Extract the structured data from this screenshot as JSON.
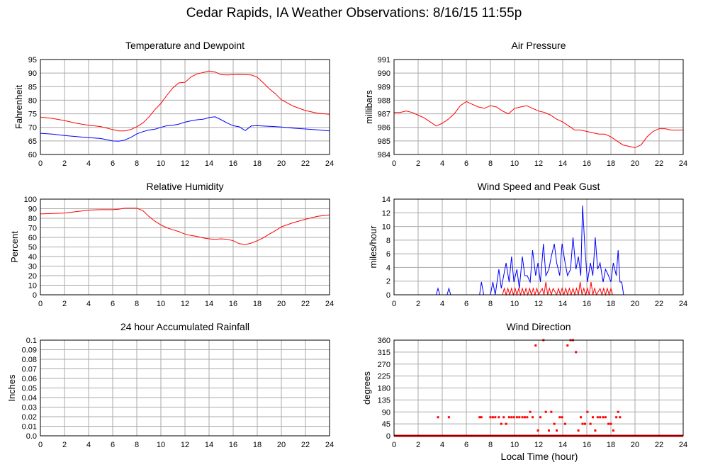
{
  "page": {
    "title": "Cedar Rapids, IA Weather Observations: 8/16/15 11:55p",
    "xlabel_common": "Local Time (hour)"
  },
  "colors": {
    "red": "#ff0000",
    "blue": "#0000ff",
    "grid": "#aaaaaa",
    "frame": "#000000"
  },
  "chart_data": [
    {
      "id": "temp",
      "type": "line",
      "title": "Temperature and Dewpoint",
      "ylabel": "Fahrenheit",
      "xlim": [
        0,
        24
      ],
      "ylim": [
        60,
        95
      ],
      "xticks": [
        "0",
        "2",
        "4",
        "6",
        "8",
        "10",
        "12",
        "14",
        "16",
        "18",
        "20",
        "22",
        "24"
      ],
      "yticks": [
        "60",
        "65",
        "70",
        "75",
        "80",
        "85",
        "90",
        "95"
      ],
      "series": [
        {
          "color": "#ff0000",
          "x": [
            0,
            1,
            2,
            3,
            4,
            5,
            6,
            6.5,
            7,
            7.5,
            8,
            8.5,
            9,
            9.5,
            10,
            10.5,
            11,
            11.5,
            12,
            12.5,
            13,
            13.5,
            14,
            14.5,
            15,
            15.5,
            16,
            16.5,
            17,
            17.5,
            18,
            18.5,
            19,
            19.5,
            20,
            21,
            22,
            23,
            24
          ],
          "y": [
            73.8,
            73.3,
            72.5,
            71.5,
            70.8,
            70.3,
            69.2,
            68.7,
            68.7,
            69.2,
            70.2,
            71.6,
            73.8,
            76.5,
            78.8,
            81.8,
            84.6,
            86.4,
            86.6,
            88.6,
            89.7,
            90.2,
            90.8,
            90.4,
            89.4,
            89.3,
            89.4,
            89.5,
            89.4,
            89.3,
            88.5,
            86.4,
            84.2,
            82.4,
            80.2,
            77.8,
            76.2,
            75.2,
            74.8
          ]
        },
        {
          "color": "#0000ff",
          "x": [
            0,
            1,
            2,
            3,
            4,
            5,
            6,
            6.5,
            7,
            7.5,
            8,
            8.5,
            9,
            9.5,
            10,
            10.5,
            11,
            11.5,
            12,
            12.5,
            13,
            13.5,
            14,
            14.5,
            15,
            15.5,
            16,
            16.5,
            17,
            17.5,
            18,
            19,
            20,
            21,
            22,
            23,
            24
          ],
          "y": [
            67.8,
            67.5,
            67.0,
            66.6,
            66.2,
            65.9,
            65.0,
            64.9,
            65.3,
            66.3,
            67.6,
            68.4,
            69.0,
            69.3,
            70.0,
            70.6,
            70.8,
            71.2,
            71.9,
            72.4,
            72.8,
            73.0,
            73.6,
            73.9,
            72.8,
            71.6,
            70.6,
            70.2,
            68.8,
            70.5,
            70.6,
            70.4,
            70.1,
            69.7,
            69.4,
            69.1,
            68.7
          ]
        }
      ]
    },
    {
      "id": "pres",
      "type": "line",
      "title": "Air Pressure",
      "ylabel": "millibars",
      "xlim": [
        0,
        24
      ],
      "ylim": [
        984,
        991
      ],
      "xticks": [
        "0",
        "2",
        "4",
        "6",
        "8",
        "10",
        "12",
        "14",
        "16",
        "18",
        "20",
        "22",
        "24"
      ],
      "yticks": [
        "984",
        "985",
        "986",
        "987",
        "988",
        "989",
        "990",
        "991"
      ],
      "series": [
        {
          "color": "#ff0000",
          "x": [
            0,
            0.5,
            1,
            1.5,
            2,
            2.5,
            3,
            3.5,
            4,
            4.5,
            5,
            5.5,
            6,
            6.5,
            7,
            7.5,
            8,
            8.5,
            9,
            9.5,
            10,
            10.5,
            11,
            11.5,
            12,
            12.5,
            13,
            13.5,
            14,
            14.5,
            15,
            15.5,
            16,
            16.5,
            17,
            17.5,
            18,
            18.5,
            19,
            19.5,
            20,
            20.5,
            21,
            21.5,
            22,
            22.5,
            23,
            23.5,
            24
          ],
          "y": [
            987.1,
            987.1,
            987.2,
            987.1,
            986.9,
            986.7,
            986.4,
            986.1,
            986.3,
            986.6,
            987.0,
            987.6,
            987.9,
            987.7,
            987.5,
            987.4,
            987.6,
            987.5,
            987.2,
            987.0,
            987.4,
            987.5,
            987.6,
            987.4,
            987.2,
            987.1,
            986.9,
            986.6,
            986.4,
            986.1,
            985.8,
            985.8,
            985.7,
            985.6,
            985.5,
            985.5,
            985.3,
            985.0,
            984.7,
            984.6,
            984.5,
            984.7,
            985.3,
            985.7,
            985.9,
            985.9,
            985.8,
            985.8,
            985.8
          ]
        }
      ]
    },
    {
      "id": "rh",
      "type": "line",
      "title": "Relative Humidity",
      "ylabel": "Percent",
      "xlim": [
        0,
        24
      ],
      "ylim": [
        0,
        100
      ],
      "xticks": [
        "0",
        "2",
        "4",
        "6",
        "8",
        "10",
        "12",
        "14",
        "16",
        "18",
        "20",
        "22",
        "24"
      ],
      "yticks": [
        "0",
        "10",
        "20",
        "30",
        "40",
        "50",
        "60",
        "70",
        "80",
        "90",
        "100"
      ],
      "series": [
        {
          "color": "#ff0000",
          "x": [
            0,
            1,
            2,
            3,
            4,
            5,
            6,
            6.5,
            7,
            7.5,
            8,
            8.5,
            9,
            9.5,
            10,
            10.5,
            11,
            11.5,
            12,
            12.5,
            13,
            13.5,
            14,
            14.5,
            15,
            15.5,
            16,
            16.5,
            17,
            17.5,
            18,
            18.5,
            19,
            19.5,
            20,
            21,
            22,
            23,
            24
          ],
          "y": [
            84.5,
            85,
            85.5,
            87,
            88.5,
            89,
            89,
            89.5,
            90.5,
            90.5,
            90.5,
            88,
            82,
            77,
            73,
            70,
            68,
            66,
            63.5,
            62,
            61,
            59.5,
            58.5,
            58,
            58.5,
            58,
            56.5,
            53.5,
            52.5,
            54,
            56.5,
            59.5,
            63.5,
            67,
            71,
            75.5,
            79,
            82,
            83.5
          ]
        }
      ]
    },
    {
      "id": "wind",
      "type": "line",
      "title": "Wind Speed and Peak Gust",
      "ylabel": "miles/hour",
      "xlim": [
        0,
        24
      ],
      "ylim": [
        0,
        15
      ],
      "xticks": [
        "0",
        "2",
        "4",
        "6",
        "8",
        "10",
        "12",
        "14",
        "16",
        "18",
        "20",
        "22",
        "24"
      ],
      "yticks": [
        "0",
        "2",
        "4",
        "6",
        "8",
        "10",
        "12",
        "14"
      ],
      "series": [
        {
          "color": "#0000ff",
          "x": [
            0,
            3.5,
            3.65,
            3.8,
            4.4,
            4.55,
            4.7,
            7.1,
            7.25,
            7.45,
            8.0,
            8.2,
            8.4,
            8.7,
            8.9,
            9.1,
            9.3,
            9.55,
            9.75,
            9.95,
            10.2,
            10.4,
            10.65,
            10.85,
            11.05,
            11.3,
            11.5,
            11.75,
            11.95,
            12.15,
            12.4,
            12.6,
            12.85,
            13.05,
            13.3,
            13.5,
            13.75,
            13.95,
            14.2,
            14.4,
            14.65,
            14.85,
            15.1,
            15.3,
            15.5,
            15.65,
            15.85,
            16.05,
            16.3,
            16.5,
            16.7,
            16.9,
            17.1,
            17.35,
            17.55,
            17.8,
            18.0,
            18.2,
            18.45,
            18.6,
            18.75,
            18.9,
            19.05,
            24
          ],
          "y": [
            0,
            0,
            1,
            0,
            0,
            1,
            0,
            0,
            2,
            0,
            0,
            2,
            0,
            4,
            1,
            3,
            5,
            2,
            6,
            2,
            4,
            1,
            6,
            3,
            3,
            2,
            7,
            3,
            5,
            2,
            8,
            3,
            4,
            6,
            8,
            5,
            3,
            8,
            5,
            3,
            4,
            9,
            4,
            6,
            3,
            14,
            7,
            2,
            5,
            3,
            9,
            4,
            5,
            2,
            4,
            3,
            2,
            5,
            3,
            7,
            2,
            2,
            0,
            0
          ]
        },
        {
          "color": "#ff0000",
          "x": [
            0,
            9.0,
            9.15,
            9.3,
            9.45,
            9.6,
            9.75,
            9.9,
            10.05,
            10.2,
            10.35,
            10.5,
            10.65,
            10.8,
            10.95,
            11.1,
            11.25,
            11.4,
            11.55,
            11.7,
            11.85,
            12.0,
            12.3,
            12.45,
            12.6,
            12.75,
            12.9,
            13.05,
            13.2,
            13.5,
            13.65,
            13.8,
            13.95,
            14.1,
            14.25,
            14.4,
            14.55,
            14.7,
            14.85,
            15.0,
            15.15,
            15.3,
            15.45,
            15.6,
            15.75,
            15.9,
            16.05,
            16.2,
            16.35,
            16.5,
            16.65,
            16.8,
            17.1,
            17.25,
            17.4,
            17.55,
            17.7,
            17.85,
            18.0,
            18.15,
            24
          ],
          "y": [
            0,
            0,
            1,
            0,
            1,
            0,
            1,
            0,
            1,
            0,
            1,
            0,
            1,
            0,
            1,
            0,
            1,
            0,
            1,
            0,
            1,
            0,
            1,
            0,
            2,
            0,
            1,
            0,
            1,
            0,
            1,
            0,
            1,
            0,
            1,
            0,
            1,
            0,
            1,
            0,
            1,
            0,
            2,
            0,
            1,
            0,
            1,
            0,
            2,
            0,
            1,
            0,
            1,
            0,
            1,
            0,
            1,
            0,
            1,
            0,
            0
          ]
        }
      ]
    },
    {
      "id": "rain",
      "type": "line",
      "title": "24 hour Accumulated Rainfall",
      "ylabel": "Inches",
      "xlim": [
        0,
        24
      ],
      "ylim": [
        0,
        0.1
      ],
      "xticks": [
        "0",
        "2",
        "4",
        "6",
        "8",
        "10",
        "12",
        "14",
        "16",
        "18",
        "20",
        "22",
        "24"
      ],
      "yticks": [
        "0.0",
        "0.01",
        "0.02",
        "0.03",
        "0.04",
        "0.05",
        "0.06",
        "0.07",
        "0.08",
        "0.09",
        "0.1"
      ],
      "series": [
        {
          "color": "#ff0000",
          "x": [
            0,
            24
          ],
          "y": [
            0,
            0
          ]
        }
      ]
    },
    {
      "id": "dir",
      "type": "scatter",
      "title": "Wind Direction",
      "ylabel": "degrees",
      "xlim": [
        0,
        24
      ],
      "ylim": [
        0,
        360
      ],
      "xticks": [
        "0",
        "2",
        "4",
        "6",
        "8",
        "10",
        "12",
        "14",
        "16",
        "18",
        "20",
        "22",
        "24"
      ],
      "yticks": [
        "0",
        "45",
        "90",
        "135",
        "180",
        "225",
        "270",
        "315",
        "360"
      ],
      "series": [
        {
          "color": "#ff0000",
          "points": [
            [
              3.65,
              70
            ],
            [
              4.55,
              70
            ],
            [
              7.1,
              70
            ],
            [
              7.25,
              70
            ],
            [
              8.0,
              70
            ],
            [
              8.2,
              70
            ],
            [
              8.4,
              70
            ],
            [
              8.7,
              70
            ],
            [
              8.9,
              45
            ],
            [
              9.1,
              70
            ],
            [
              9.3,
              45
            ],
            [
              9.55,
              70
            ],
            [
              9.75,
              70
            ],
            [
              9.95,
              70
            ],
            [
              10.2,
              70
            ],
            [
              10.4,
              70
            ],
            [
              10.65,
              70
            ],
            [
              10.85,
              70
            ],
            [
              11.05,
              70
            ],
            [
              11.3,
              90
            ],
            [
              11.5,
              70
            ],
            [
              11.75,
              340
            ],
            [
              11.95,
              20
            ],
            [
              12.15,
              70
            ],
            [
              12.4,
              360
            ],
            [
              12.6,
              90
            ],
            [
              12.85,
              20
            ],
            [
              13.05,
              90
            ],
            [
              13.3,
              45
            ],
            [
              13.5,
              20
            ],
            [
              13.75,
              70
            ],
            [
              13.95,
              70
            ],
            [
              14.2,
              45
            ],
            [
              14.4,
              340
            ],
            [
              14.65,
              360
            ],
            [
              14.85,
              360
            ],
            [
              15.1,
              315
            ],
            [
              15.3,
              20
            ],
            [
              15.5,
              70
            ],
            [
              15.65,
              45
            ],
            [
              15.85,
              45
            ],
            [
              16.05,
              90
            ],
            [
              16.3,
              45
            ],
            [
              16.5,
              70
            ],
            [
              16.7,
              20
            ],
            [
              16.9,
              70
            ],
            [
              17.1,
              70
            ],
            [
              17.35,
              70
            ],
            [
              17.55,
              70
            ],
            [
              17.8,
              45
            ],
            [
              18.0,
              45
            ],
            [
              18.2,
              20
            ],
            [
              18.45,
              70
            ],
            [
              18.6,
              90
            ],
            [
              18.75,
              70
            ]
          ]
        }
      ]
    }
  ]
}
